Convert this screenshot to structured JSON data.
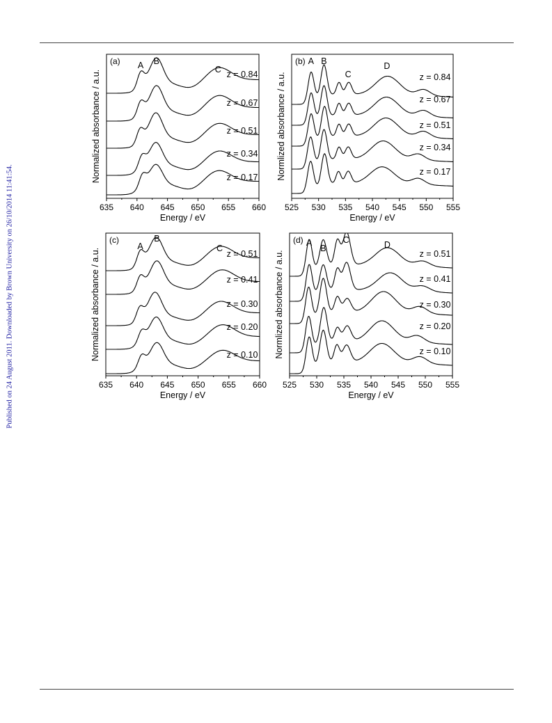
{
  "side_note": "Published on 24 August 2011. Downloaded by Brown University on 26/10/2014 11:41:54.",
  "chart_data": [
    {
      "type": "line",
      "panel_label": "(a)",
      "xlabel": "Energy / eV",
      "ylabel": "Normalized absorbance / a.u.",
      "xlim": [
        635,
        660
      ],
      "xticks": [
        635,
        640,
        645,
        650,
        655,
        660
      ],
      "yticks_shown": false,
      "peak_labels": [
        {
          "label": "A",
          "x": 640.6
        },
        {
          "label": "B",
          "x": 643.2
        },
        {
          "label": "C",
          "x": 653.3
        }
      ],
      "series": [
        {
          "name": "z = 0.84",
          "peaks": [
            {
              "x": 640.6,
              "y": 0.55
            },
            {
              "x": 643.2,
              "y": 1.0
            },
            {
              "x": 653.3,
              "y": 0.55
            }
          ]
        },
        {
          "name": "z = 0.67",
          "peaks": [
            {
              "x": 640.6,
              "y": 0.5
            },
            {
              "x": 643.2,
              "y": 1.0
            },
            {
              "x": 653.3,
              "y": 0.55
            }
          ]
        },
        {
          "name": "z = 0.51",
          "peaks": [
            {
              "x": 640.5,
              "y": 0.5
            },
            {
              "x": 643.1,
              "y": 1.0
            },
            {
              "x": 653.3,
              "y": 0.52
            }
          ]
        },
        {
          "name": "z = 0.34",
          "peaks": [
            {
              "x": 640.8,
              "y": 0.45
            },
            {
              "x": 643.1,
              "y": 0.9
            },
            {
              "x": 653.3,
              "y": 0.5
            }
          ]
        },
        {
          "name": "z = 0.17",
          "peaks": [
            {
              "x": 640.9,
              "y": 0.45
            },
            {
              "x": 643.1,
              "y": 0.8
            },
            {
              "x": 653.2,
              "y": 0.5
            }
          ]
        }
      ]
    },
    {
      "type": "line",
      "panel_label": "(b)",
      "xlabel": "Energy / eV",
      "ylabel": "Normlized absorbance / a.u.",
      "xlim": [
        525,
        555
      ],
      "xticks": [
        525,
        530,
        535,
        540,
        545,
        550,
        555
      ],
      "yticks_shown": false,
      "peak_labels": [
        {
          "label": "A",
          "x": 528.6
        },
        {
          "label": "B",
          "x": 531.0
        },
        {
          "label": "C",
          "x": 535.5
        },
        {
          "label": "D",
          "x": 542.7
        }
      ],
      "series": [
        {
          "name": "z = 0.84",
          "peaks": [
            {
              "x": 528.6,
              "y": 1.0
            },
            {
              "x": 531.0,
              "y": 1.0
            },
            {
              "x": 533.8,
              "y": 0.4
            },
            {
              "x": 535.6,
              "y": 0.4
            },
            {
              "x": 542.8,
              "y": 0.6
            },
            {
              "x": 549.5,
              "y": 0.2
            }
          ]
        },
        {
          "name": "z = 0.67",
          "peaks": [
            {
              "x": 528.6,
              "y": 1.0
            },
            {
              "x": 531.0,
              "y": 1.0
            },
            {
              "x": 533.8,
              "y": 0.4
            },
            {
              "x": 535.6,
              "y": 0.4
            },
            {
              "x": 542.6,
              "y": 0.6
            },
            {
              "x": 549.5,
              "y": 0.2
            }
          ]
        },
        {
          "name": "z = 0.51",
          "peaks": [
            {
              "x": 528.6,
              "y": 1.0
            },
            {
              "x": 531.1,
              "y": 1.0
            },
            {
              "x": 533.8,
              "y": 0.4
            },
            {
              "x": 535.6,
              "y": 0.4
            },
            {
              "x": 542.5,
              "y": 0.6
            },
            {
              "x": 549.5,
              "y": 0.2
            }
          ]
        },
        {
          "name": "z = 0.34",
          "peaks": [
            {
              "x": 528.5,
              "y": 1.0
            },
            {
              "x": 531.0,
              "y": 1.0
            },
            {
              "x": 533.8,
              "y": 0.4
            },
            {
              "x": 535.5,
              "y": 0.4
            },
            {
              "x": 542.0,
              "y": 0.6
            },
            {
              "x": 548.5,
              "y": 0.2
            }
          ]
        },
        {
          "name": "z = 0.17",
          "peaks": [
            {
              "x": 528.5,
              "y": 1.0
            },
            {
              "x": 531.1,
              "y": 1.0
            },
            {
              "x": 533.7,
              "y": 0.4
            },
            {
              "x": 535.5,
              "y": 0.4
            },
            {
              "x": 541.8,
              "y": 0.55
            },
            {
              "x": 548.5,
              "y": 0.2
            }
          ]
        }
      ]
    },
    {
      "type": "line",
      "panel_label": "(c)",
      "xlabel": "Energy / eV",
      "ylabel": "Normalized absorbance / a.u.",
      "xlim": [
        635,
        660
      ],
      "xticks": [
        635,
        640,
        645,
        650,
        655,
        660
      ],
      "yticks_shown": false,
      "peak_labels": [
        {
          "label": "A",
          "x": 640.6
        },
        {
          "label": "B",
          "x": 643.3
        },
        {
          "label": "C",
          "x": 653.5
        }
      ],
      "series": [
        {
          "name": "z = 0.51",
          "peaks": [
            {
              "x": 640.6,
              "y": 0.55
            },
            {
              "x": 643.2,
              "y": 1.0
            },
            {
              "x": 653.5,
              "y": 0.55
            }
          ]
        },
        {
          "name": "z = 0.41",
          "peaks": [
            {
              "x": 640.6,
              "y": 0.5
            },
            {
              "x": 643.3,
              "y": 1.0
            },
            {
              "x": 653.7,
              "y": 0.55
            }
          ]
        },
        {
          "name": "z = 0.30",
          "peaks": [
            {
              "x": 640.5,
              "y": 0.5
            },
            {
              "x": 643.0,
              "y": 1.0
            },
            {
              "x": 653.5,
              "y": 0.55
            }
          ]
        },
        {
          "name": "z = 0.20",
          "peaks": [
            {
              "x": 640.8,
              "y": 0.45
            },
            {
              "x": 643.2,
              "y": 0.95
            },
            {
              "x": 653.8,
              "y": 0.55
            }
          ]
        },
        {
          "name": "z = 0.10",
          "peaks": [
            {
              "x": 640.8,
              "y": 0.45
            },
            {
              "x": 643.3,
              "y": 0.9
            },
            {
              "x": 653.8,
              "y": 0.5
            }
          ]
        }
      ]
    },
    {
      "type": "line",
      "panel_label": "(d)",
      "xlabel": "Energy / eV",
      "ylabel": "Normlized absorbance / a.u.",
      "xlim": [
        525,
        555
      ],
      "xticks": [
        525,
        530,
        535,
        540,
        545,
        550,
        555
      ],
      "yticks_shown": false,
      "peak_labels": [
        {
          "label": "A",
          "x": 528.6
        },
        {
          "label": "B",
          "x": 531.2
        },
        {
          "label": "C",
          "x": 535.4
        },
        {
          "label": "D",
          "x": 543.0
        }
      ],
      "series": [
        {
          "name": "z = 0.51",
          "peaks": [
            {
              "x": 528.6,
              "y": 1.0
            },
            {
              "x": 531.2,
              "y": 0.75
            },
            {
              "x": 533.8,
              "y": 0.7
            },
            {
              "x": 535.5,
              "y": 0.95
            },
            {
              "x": 543.0,
              "y": 0.5
            },
            {
              "x": 549.5,
              "y": 0.15
            }
          ]
        },
        {
          "name": "z = 0.41",
          "peaks": [
            {
              "x": 528.6,
              "y": 1.0
            },
            {
              "x": 531.2,
              "y": 0.75
            },
            {
              "x": 533.8,
              "y": 0.6
            },
            {
              "x": 535.5,
              "y": 0.8
            },
            {
              "x": 543.5,
              "y": 0.5
            },
            {
              "x": 549.5,
              "y": 0.15
            }
          ]
        },
        {
          "name": "z = 0.30",
          "peaks": [
            {
              "x": 528.5,
              "y": 1.0
            },
            {
              "x": 531.2,
              "y": 1.0
            },
            {
              "x": 533.8,
              "y": 0.45
            },
            {
              "x": 535.6,
              "y": 0.4
            },
            {
              "x": 542.3,
              "y": 0.6
            },
            {
              "x": 549.0,
              "y": 0.2
            }
          ]
        },
        {
          "name": "z = 0.20",
          "peaks": [
            {
              "x": 528.5,
              "y": 1.0
            },
            {
              "x": 531.3,
              "y": 1.0
            },
            {
              "x": 533.8,
              "y": 0.4
            },
            {
              "x": 535.6,
              "y": 0.45
            },
            {
              "x": 542.0,
              "y": 0.6
            },
            {
              "x": 548.5,
              "y": 0.2
            }
          ]
        },
        {
          "name": "z = 0.10",
          "peaks": [
            {
              "x": 528.6,
              "y": 1.0
            },
            {
              "x": 531.2,
              "y": 0.95
            },
            {
              "x": 533.7,
              "y": 0.5
            },
            {
              "x": 535.5,
              "y": 0.5
            },
            {
              "x": 542.0,
              "y": 0.55
            },
            {
              "x": 549.0,
              "y": 0.2
            }
          ]
        }
      ]
    }
  ]
}
